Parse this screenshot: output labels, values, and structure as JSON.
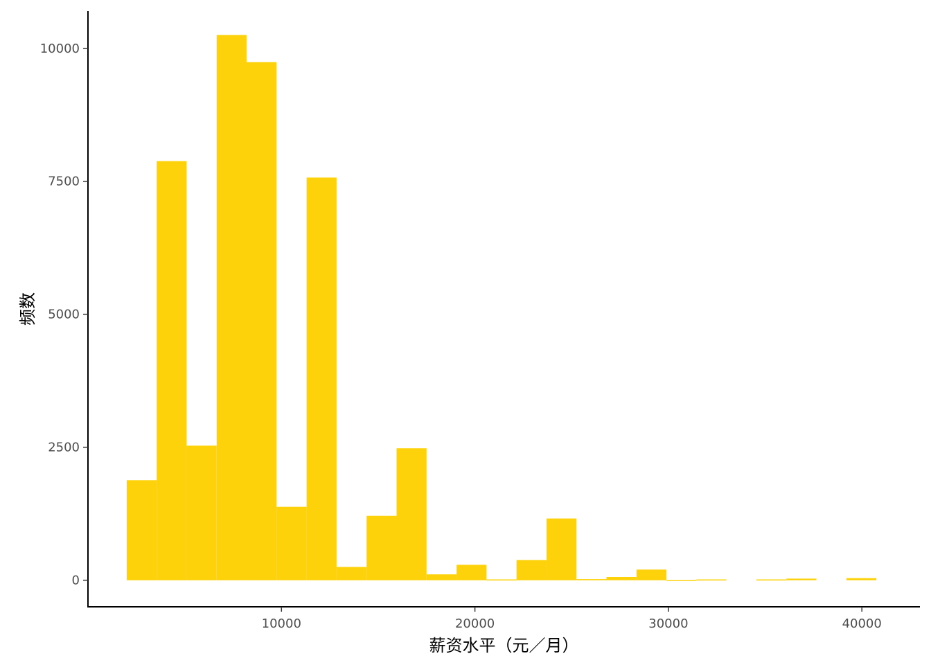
{
  "chart_data": {
    "type": "bar",
    "subtype": "histogram",
    "title": "",
    "xlabel": "薪资水平（元／月）",
    "ylabel": "频数",
    "xlim": [
      0,
      43000
    ],
    "ylim": [
      -500,
      10700
    ],
    "x_ticks": [
      10000,
      20000,
      30000,
      40000
    ],
    "y_ticks": [
      0,
      2500,
      5000,
      7500,
      10000
    ],
    "x_tick_labels": [
      "10000",
      "20000",
      "30000",
      "40000"
    ],
    "y_tick_labels": [
      "0",
      "2500",
      "5000",
      "7500",
      "10000"
    ],
    "bar_color": "#FDD20A",
    "grid": false,
    "legend": "none",
    "bins": [
      {
        "x0": 2000,
        "x1": 3550,
        "count": 1880
      },
      {
        "x0": 3550,
        "x1": 5100,
        "count": 7880
      },
      {
        "x0": 5100,
        "x1": 6650,
        "count": 2530
      },
      {
        "x0": 6650,
        "x1": 8200,
        "count": 10250
      },
      {
        "x0": 8200,
        "x1": 9750,
        "count": 9740
      },
      {
        "x0": 9750,
        "x1": 11300,
        "count": 1380
      },
      {
        "x0": 11300,
        "x1": 12850,
        "count": 7570
      },
      {
        "x0": 12850,
        "x1": 14400,
        "count": 250
      },
      {
        "x0": 14400,
        "x1": 15950,
        "count": 1210
      },
      {
        "x0": 15950,
        "x1": 17500,
        "count": 2480
      },
      {
        "x0": 17500,
        "x1": 19050,
        "count": 110
      },
      {
        "x0": 19050,
        "x1": 20600,
        "count": 290
      },
      {
        "x0": 20600,
        "x1": 22150,
        "count": 15
      },
      {
        "x0": 22150,
        "x1": 23700,
        "count": 380
      },
      {
        "x0": 23700,
        "x1": 25250,
        "count": 1160
      },
      {
        "x0": 25250,
        "x1": 26800,
        "count": 20
      },
      {
        "x0": 26800,
        "x1": 28350,
        "count": 60
      },
      {
        "x0": 28350,
        "x1": 29900,
        "count": 200
      },
      {
        "x0": 29900,
        "x1": 31450,
        "count": 5
      },
      {
        "x0": 31450,
        "x1": 33000,
        "count": 15
      },
      {
        "x0": 33000,
        "x1": 34550,
        "count": 0
      },
      {
        "x0": 34550,
        "x1": 36100,
        "count": 15
      },
      {
        "x0": 36100,
        "x1": 37650,
        "count": 30
      },
      {
        "x0": 37650,
        "x1": 39200,
        "count": 0
      },
      {
        "x0": 39200,
        "x1": 40750,
        "count": 40
      }
    ]
  }
}
